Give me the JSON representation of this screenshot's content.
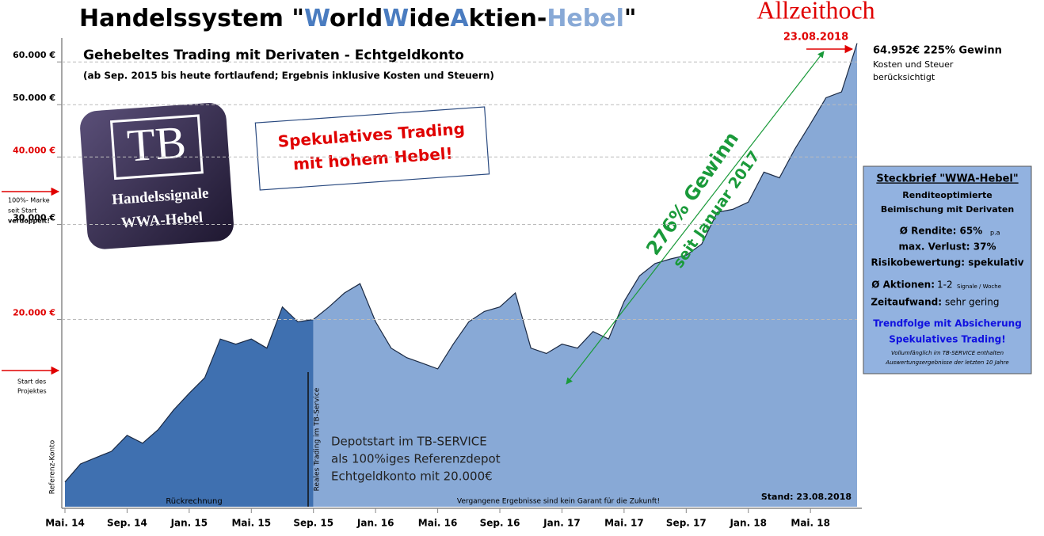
{
  "chart_data": {
    "type": "area",
    "title_parts": [
      "Handelssystem \"",
      "W",
      "orld",
      "W",
      "ide",
      "A",
      "ktien-",
      "Hebel",
      "\""
    ],
    "subtitle": "Gehebeltes Trading mit Derivaten - Echtgeldkonto",
    "note": "(ab Sep. 2015 bis heute fortlaufend; Ergebnis inklusive Kosten und Steuern)",
    "y_scale": "log",
    "ylim": [
      9000,
      66000
    ],
    "yticks": [
      {
        "value": 20000,
        "label": "20.000  €",
        "color": "#e00000"
      },
      {
        "value": 30000,
        "label": "30.000  €",
        "color": "#000000"
      },
      {
        "value": 40000,
        "label": "40.000  €",
        "color": "#e00000"
      },
      {
        "value": 50000,
        "label": "50.000  €",
        "color": "#000000"
      },
      {
        "value": 60000,
        "label": "60.000  €",
        "color": "#000000"
      }
    ],
    "grid": true,
    "x": [
      "2014-05",
      "2014-06",
      "2014-07",
      "2014-08",
      "2014-09",
      "2014-10",
      "2014-11",
      "2014-12",
      "2015-01",
      "2015-02",
      "2015-03",
      "2015-04",
      "2015-05",
      "2015-06",
      "2015-07",
      "2015-08",
      "2015-09",
      "2015-10",
      "2015-11",
      "2015-12",
      "2016-01",
      "2016-02",
      "2016-03",
      "2016-04",
      "2016-05",
      "2016-06",
      "2016-07",
      "2016-08",
      "2016-09",
      "2016-10",
      "2016-11",
      "2016-12",
      "2017-01",
      "2017-02",
      "2017-03",
      "2017-04",
      "2017-05",
      "2017-06",
      "2017-07",
      "2017-08",
      "2017-09",
      "2017-10",
      "2017-11",
      "2017-12",
      "2018-01",
      "2018-02",
      "2018-03",
      "2018-04",
      "2018-05",
      "2018-06",
      "2018-07",
      "2018-08"
    ],
    "xticks": [
      {
        "value": "2014-05",
        "label": "Mai. 14"
      },
      {
        "value": "2014-09",
        "label": "Sep. 14"
      },
      {
        "value": "2015-01",
        "label": "Jan. 15"
      },
      {
        "value": "2015-05",
        "label": "Mai. 15"
      },
      {
        "value": "2015-09",
        "label": "Sep. 15"
      },
      {
        "value": "2016-01",
        "label": "Jan. 16"
      },
      {
        "value": "2016-05",
        "label": "Mai. 16"
      },
      {
        "value": "2016-09",
        "label": "Sep. 16"
      },
      {
        "value": "2017-01",
        "label": "Jan. 17"
      },
      {
        "value": "2017-05",
        "label": "Mai. 17"
      },
      {
        "value": "2017-09",
        "label": "Sep. 17"
      },
      {
        "value": "2018-01",
        "label": "Jan. 18"
      },
      {
        "value": "2018-05",
        "label": "Mai. 18"
      }
    ],
    "series": [
      {
        "color": "#3f70b0",
        "values": [
          10000,
          10800,
          11100,
          11400,
          12200,
          11800,
          12500,
          13600,
          14600,
          15600,
          18400,
          18000,
          18400,
          17700,
          21100,
          19800,
          20000,
          null,
          null,
          null,
          null,
          null,
          null,
          null,
          null,
          null,
          null,
          null,
          null,
          null,
          null,
          null,
          null,
          null,
          null,
          null,
          null,
          null,
          null,
          null,
          null,
          null,
          null,
          null,
          null,
          null,
          null,
          null,
          null,
          null,
          null,
          null
        ]
      },
      {
        "color": "#88a9d6",
        "values": [
          null,
          null,
          null,
          null,
          null,
          null,
          null,
          null,
          null,
          null,
          null,
          null,
          null,
          null,
          null,
          null,
          20000,
          21100,
          22400,
          23300,
          19800,
          17700,
          17000,
          16600,
          16200,
          18000,
          19800,
          20700,
          21100,
          22400,
          17700,
          17300,
          18000,
          17700,
          19000,
          18400,
          21600,
          24100,
          25400,
          25900,
          26300,
          27600,
          31600,
          32000,
          33000,
          37500,
          36600,
          41400,
          46100,
          51500,
          52800,
          64952
        ]
      }
    ],
    "annotations": {
      "all_time_high": "Allzeithoch",
      "ath_date": "23.08.2018",
      "final_value": "64.952€  225% Gewinn",
      "costs_1": "Kosten und Steuer",
      "costs_2": "berücksichtigt",
      "logo_tb": "TB",
      "logo_1": "Handelssignale",
      "logo_2": "WWA-Hebel",
      "spec_1": "Spekulatives Trading",
      "spec_2": "mit hohem Hebel!",
      "gain": "276% Gewinn",
      "gain_since": "seit Januar 2017",
      "mark_1": "100%- Marke",
      "mark_2": "seit  Start",
      "mark_3": "verdoppelt!",
      "start_1": "Start des",
      "start_2": "Projektes",
      "ref_account": "Referenz-Konto",
      "real_trading": "Reales Trading im TB-Service",
      "depot_1": "Depotstart im TB-SERVICE",
      "depot_2": "als 100%iges Referenzdepot",
      "depot_3": "Echtgeldkonto mit 20.000€",
      "backtest": "Rückrechnung",
      "disclaimer": "Vergangene Ergebnisse sind kein Garant für die Zukunft!",
      "as_of": "Stand: 23.08.2018"
    },
    "profile": {
      "title": "Steckbrief \"WWA-Hebel\"",
      "l1": "Renditeoptimierte",
      "l2": "Beimischung mit Derivaten",
      "l3": "Ø Rendite: 65%",
      "l3s": "p.a",
      "l4": "max. Verlust: 37%",
      "l5": "Risikobewertung: spekulativ",
      "l6a": "Ø Aktionen:",
      "l6b": "1-2",
      "l6s": "Signale / Woche",
      "l7a": "Zeitaufwand:",
      "l7b": "sehr gering",
      "l8": "Trendfolge mit Absicherung",
      "l9": "Spekulatives Trading!",
      "l10": "Vollumfänglich  im TB-SERVICE enthalten",
      "l11": "Auswertungsergebnisse  der letzten 10 Jahre"
    }
  }
}
